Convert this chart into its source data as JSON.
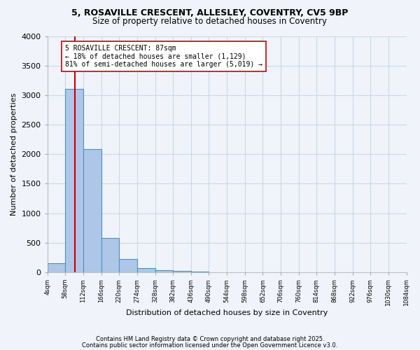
{
  "title_line1": "5, ROSAVILLE CRESCENT, ALLESLEY, COVENTRY, CV5 9BP",
  "title_line2": "Size of property relative to detached houses in Coventry",
  "xlabel": "Distribution of detached houses by size in Coventry",
  "ylabel": "Number of detached properties",
  "bin_edges": [
    4,
    58,
    112,
    166,
    220,
    274,
    328,
    382,
    436,
    490,
    544,
    598,
    652,
    706,
    760,
    814,
    868,
    922,
    976,
    1030,
    1084
  ],
  "bar_heights": [
    150,
    3100,
    2080,
    575,
    220,
    65,
    35,
    20,
    10,
    0,
    0,
    0,
    0,
    0,
    0,
    0,
    0,
    0,
    0,
    0
  ],
  "bar_color": "#aec6e8",
  "bar_edge_color": "#4a90c4",
  "grid_color": "#c8d8e8",
  "background_color": "#f0f4fa",
  "vline_x": 87,
  "vline_color": "#cc0000",
  "annotation_text": "5 ROSAVILLE CRESCENT: 87sqm\n← 18% of detached houses are smaller (1,129)\n81% of semi-detached houses are larger (5,019) →",
  "annotation_box_color": "#ffffff",
  "annotation_box_edge_color": "#cc0000",
  "ylim": [
    0,
    4000
  ],
  "yticks": [
    0,
    500,
    1000,
    1500,
    2000,
    2500,
    3000,
    3500,
    4000
  ],
  "footnote1": "Contains HM Land Registry data © Crown copyright and database right 2025.",
  "footnote2": "Contains public sector information licensed under the Open Government Licence v3.0."
}
